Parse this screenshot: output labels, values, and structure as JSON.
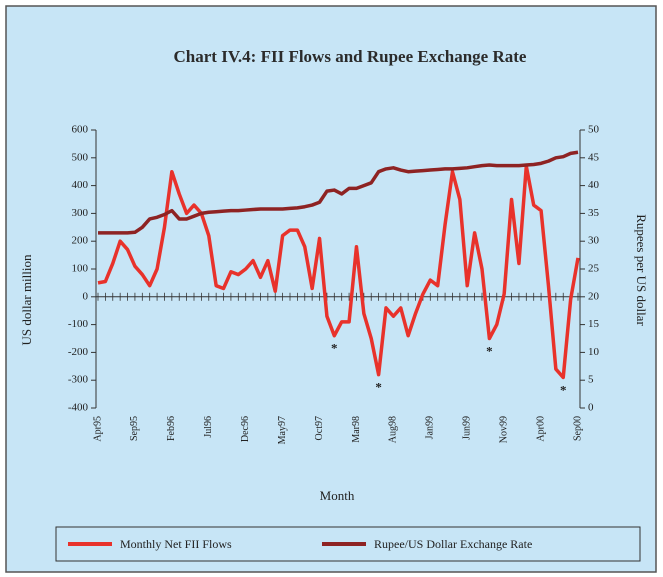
{
  "chart_data": {
    "type": "line",
    "title": "Chart IV.4: FII Flows and Rupee Exchange Rate",
    "x_label": "Month",
    "y_label": "US dollar million",
    "y2_label": "Rupees per US dollar",
    "categories": [
      "Apr95",
      null,
      null,
      null,
      null,
      "Sep95",
      null,
      null,
      null,
      null,
      "Feb96",
      null,
      null,
      null,
      null,
      "Jul96",
      null,
      null,
      null,
      null,
      "Dec96",
      null,
      null,
      null,
      null,
      "May97",
      null,
      null,
      null,
      null,
      "Oct97",
      null,
      null,
      null,
      null,
      "Mar98",
      null,
      null,
      null,
      null,
      "Aug98",
      null,
      null,
      null,
      null,
      "Jan99",
      null,
      null,
      null,
      null,
      "Jun99",
      null,
      null,
      null,
      null,
      "Nov99",
      null,
      null,
      null,
      null,
      "Apr00",
      null,
      null,
      null,
      null,
      "Sep00"
    ],
    "series": [
      {
        "name": "Monthly Net FII Flows",
        "color": "#e8322b",
        "axis": "y",
        "values": [
          50,
          55,
          120,
          200,
          170,
          110,
          80,
          40,
          100,
          250,
          450,
          370,
          300,
          330,
          300,
          220,
          40,
          30,
          90,
          80,
          100,
          130,
          70,
          130,
          20,
          220,
          240,
          240,
          180,
          30,
          210,
          -70,
          -140,
          -90,
          -90,
          180,
          -60,
          -150,
          -280,
          -40,
          -70,
          -40,
          -140,
          -60,
          10,
          60,
          40,
          260,
          450,
          350,
          40,
          230,
          100,
          -150,
          -100,
          10,
          350,
          120,
          470,
          330,
          310,
          40,
          -260,
          -290,
          -10,
          140
        ]
      },
      {
        "name": "Rupee/US Dollar Exchange Rate",
        "color": "#8e2323",
        "axis": "y2",
        "values": [
          31.5,
          31.5,
          31.5,
          31.5,
          31.5,
          31.6,
          32.5,
          34,
          34.3,
          34.8,
          35.5,
          34,
          34,
          34.5,
          35,
          35.2,
          35.3,
          35.4,
          35.5,
          35.5,
          35.6,
          35.7,
          35.8,
          35.8,
          35.8,
          35.8,
          35.9,
          36,
          36.2,
          36.5,
          37,
          39,
          39.2,
          38.5,
          39.5,
          39.5,
          40,
          40.5,
          42.5,
          43,
          43.2,
          42.8,
          42.5,
          42.6,
          42.7,
          42.8,
          42.9,
          43,
          43,
          43.1,
          43.2,
          43.4,
          43.6,
          43.7,
          43.6,
          43.6,
          43.6,
          43.6,
          43.7,
          43.8,
          44,
          44.4,
          45,
          45.2,
          45.8,
          46
        ]
      }
    ],
    "ylim": [
      -400,
      600
    ],
    "yticks": [
      -400,
      -300,
      -200,
      -100,
      0,
      100,
      200,
      300,
      400,
      500,
      600
    ],
    "y2lim": [
      0,
      50
    ],
    "y2ticks": [
      0,
      5,
      10,
      15,
      20,
      25,
      30,
      35,
      40,
      45,
      50
    ],
    "annotations": [
      {
        "text": "*",
        "point": 32
      },
      {
        "text": "*",
        "point": 38
      },
      {
        "text": "*",
        "point": 53
      },
      {
        "text": "*",
        "point": 63
      }
    ],
    "legend": "bottom"
  }
}
